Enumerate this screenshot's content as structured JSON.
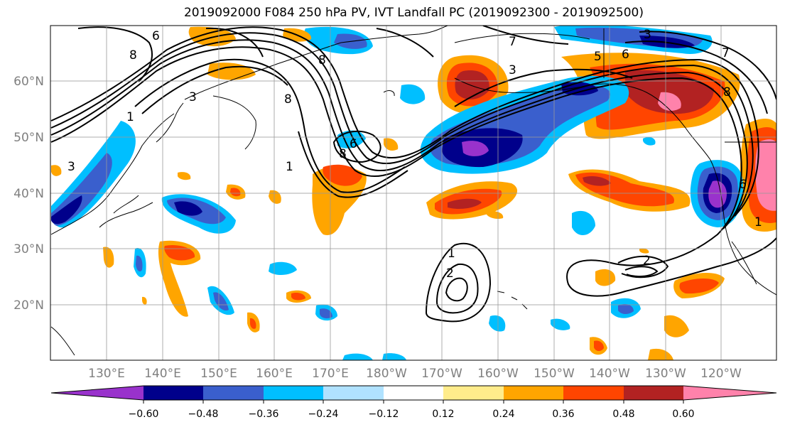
{
  "title": "2019092000 F084 250 hPa PV, IVT Landfall PC (2019092300 - 2019092500)",
  "lat_labels": [
    "60°N",
    "50°N",
    "40°N",
    "30°N",
    "20°N"
  ],
  "lon_labels": [
    "130°E",
    "140°E",
    "150°E",
    "160°E",
    "170°E",
    "180°W",
    "170°W",
    "160°W",
    "150°W",
    "140°W",
    "130°W",
    "120°W"
  ],
  "colorbar": {
    "colors": [
      "#9932cc",
      "#00008b",
      "#3a5fcd",
      "#00bfff",
      "#b0e2ff",
      "#ffffff",
      "#ffec8b",
      "#ffa500",
      "#ff4500",
      "#b22222",
      "#ff82ab"
    ],
    "tick_labels": [
      "−0.60",
      "−0.48",
      "−0.36",
      "−0.24",
      "−0.12",
      "0.12",
      "0.24",
      "0.36",
      "0.48",
      "0.60"
    ]
  },
  "contour_labels": [
    "6",
    "8",
    "3",
    "1",
    "3",
    "8",
    "8",
    "6",
    "8",
    "1",
    "7",
    "5",
    "6",
    "3",
    "3",
    "7",
    "8",
    "6",
    "1",
    "2",
    "2",
    "1"
  ]
}
